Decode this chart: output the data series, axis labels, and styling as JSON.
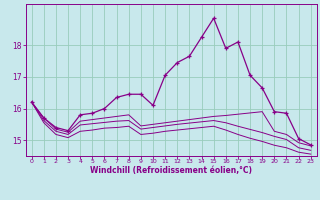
{
  "xlabel": "Windchill (Refroidissement éolien,°C)",
  "bg_color": "#c8e8ec",
  "line_color": "#880088",
  "grid_color": "#99ccbb",
  "hours": [
    0,
    1,
    2,
    3,
    4,
    5,
    6,
    7,
    8,
    9,
    10,
    11,
    12,
    13,
    14,
    15,
    16,
    17,
    18,
    19,
    20,
    21,
    22,
    23
  ],
  "main_series": [
    16.2,
    15.7,
    15.4,
    15.3,
    15.8,
    15.85,
    16.0,
    16.35,
    16.45,
    16.45,
    16.1,
    17.05,
    17.45,
    17.65,
    18.25,
    18.85,
    17.9,
    18.1,
    17.05,
    16.65,
    15.9,
    15.85,
    15.05,
    14.85
  ],
  "smooth_series": [
    [
      16.2,
      15.7,
      15.35,
      15.25,
      15.6,
      15.65,
      15.7,
      15.75,
      15.8,
      15.45,
      15.5,
      15.55,
      15.6,
      15.65,
      15.7,
      15.75,
      15.78,
      15.82,
      15.86,
      15.9,
      15.28,
      15.18,
      14.92,
      14.82
    ],
    [
      16.2,
      15.62,
      15.28,
      15.18,
      15.48,
      15.52,
      15.56,
      15.6,
      15.62,
      15.35,
      15.4,
      15.45,
      15.5,
      15.54,
      15.58,
      15.62,
      15.55,
      15.44,
      15.34,
      15.24,
      15.12,
      15.02,
      14.76,
      14.68
    ],
    [
      16.2,
      15.55,
      15.18,
      15.08,
      15.28,
      15.32,
      15.38,
      15.4,
      15.44,
      15.18,
      15.22,
      15.28,
      15.32,
      15.36,
      15.4,
      15.44,
      15.32,
      15.18,
      15.06,
      14.96,
      14.84,
      14.76,
      14.62,
      14.56
    ]
  ],
  "xlim": [
    -0.5,
    23.5
  ],
  "ylim": [
    14.5,
    19.3
  ],
  "yticks": [
    15,
    16,
    17,
    18
  ],
  "xticks": [
    0,
    1,
    2,
    3,
    4,
    5,
    6,
    7,
    8,
    9,
    10,
    11,
    12,
    13,
    14,
    15,
    16,
    17,
    18,
    19,
    20,
    21,
    22,
    23
  ]
}
